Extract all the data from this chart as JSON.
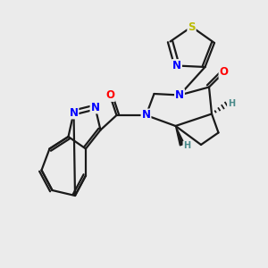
{
  "bg_color": "#ebebeb",
  "bond_color": "#1a1a1a",
  "bond_width": 1.6,
  "atom_colors": {
    "N": "#0000ff",
    "O": "#ff0000",
    "S": "#bbbb00",
    "H_stereo": "#4a8a8a",
    "C": "#1a1a1a"
  },
  "font_size_atom": 8.5,
  "font_size_H": 7.0
}
